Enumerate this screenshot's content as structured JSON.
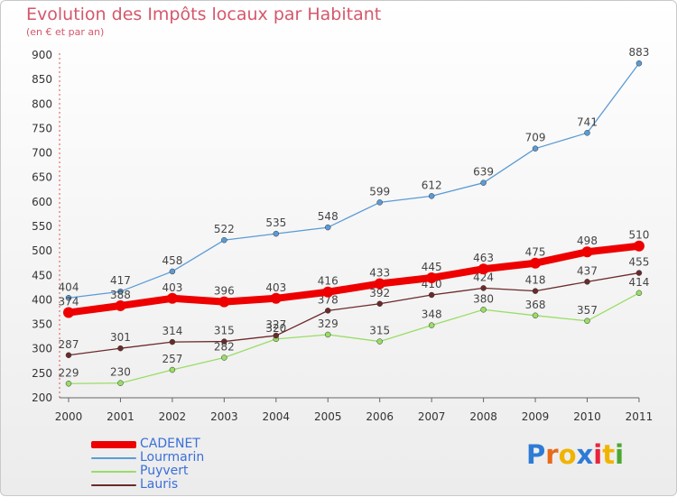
{
  "header": {
    "title": "Evolution des Impôts locaux par Habitant",
    "subtitle": "(en € et par an)"
  },
  "logo": {
    "text": "Proxiti",
    "letter_colors": [
      "#2e7bd6",
      "#e86a1c",
      "#f0b400",
      "#2e7bd6",
      "#e8243c",
      "#f0b400",
      "#4aa832"
    ]
  },
  "chart_data": {
    "type": "line",
    "title": "Evolution des Impôts locaux par Habitant",
    "subtitle": "(en € et par an)",
    "categories": [
      "2000",
      "2001",
      "2002",
      "2003",
      "2004",
      "2005",
      "2006",
      "2007",
      "2008",
      "2009",
      "2010",
      "2011"
    ],
    "ylim": [
      200,
      900
    ],
    "yticks": [
      200,
      250,
      300,
      350,
      400,
      450,
      500,
      550,
      600,
      650,
      700,
      750,
      800,
      850,
      900
    ],
    "grid": false,
    "legend_position": "bottom-left",
    "series": [
      {
        "name": "CADENET",
        "color": "#ee0000",
        "values": [
          374,
          388,
          403,
          396,
          403,
          416,
          433,
          445,
          463,
          475,
          498,
          510
        ]
      },
      {
        "name": "Lourmarin",
        "color": "#5b9bd5",
        "values": [
          404,
          417,
          458,
          522,
          535,
          548,
          599,
          612,
          639,
          709,
          741,
          883
        ]
      },
      {
        "name": "Puyvert",
        "color": "#99dd66",
        "values": [
          229,
          230,
          257,
          282,
          320,
          329,
          315,
          348,
          380,
          368,
          357,
          414
        ]
      },
      {
        "name": "Lauris",
        "color": "#6b2a2a",
        "values": [
          287,
          301,
          314,
          315,
          327,
          378,
          392,
          410,
          424,
          418,
          437,
          455
        ]
      }
    ]
  }
}
